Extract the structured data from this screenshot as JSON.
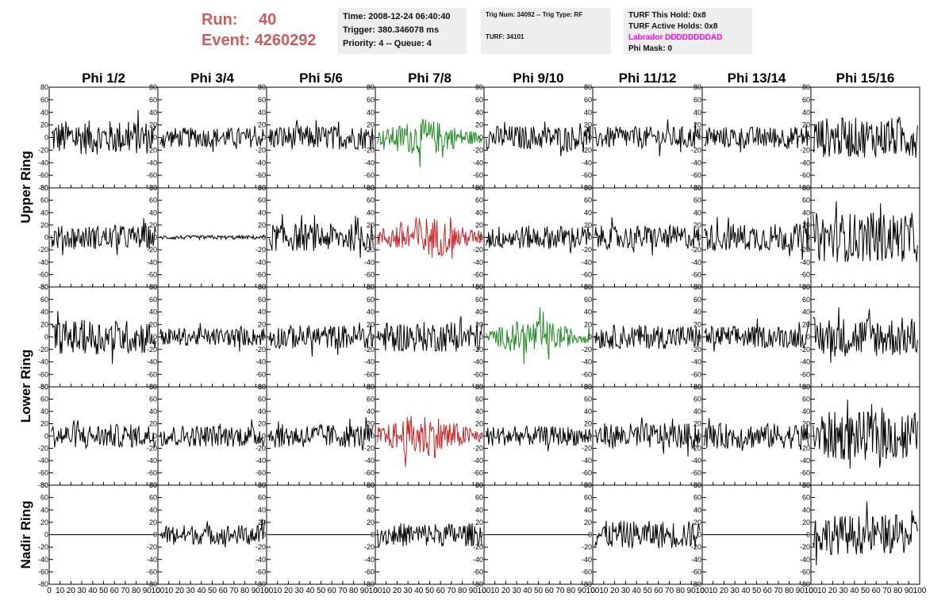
{
  "header": {
    "run_label": "Run:",
    "run_value": "40",
    "event_label": "Event:",
    "event_value": "4260292",
    "time_line": "Time: 2008-12-24 06:40:40",
    "trigger_line": "Trigger: 380.346078 ms",
    "priority_line": "Priority: 4 -- Queue: 4",
    "trig_num_line": "Trig Num: 34092 -- Trig Type: RF",
    "turf_line": "TURF: 34101",
    "turf_hold_line": "TURF This Hold: 0x8",
    "turf_active_line": "TURF Active Holds: 0x8",
    "labrador_line": "Labrador DDDDDDDDAD",
    "phi_mask_line": "Phi Mask: 0"
  },
  "chart_data": {
    "type": "line",
    "columns": [
      "Phi 1/2",
      "Phi 3/4",
      "Phi 5/6",
      "Phi 7/8",
      "Phi 9/10",
      "Phi 11/12",
      "Phi 13/14",
      "Phi 15/16"
    ],
    "row_groups": [
      {
        "label": "Upper Ring",
        "rows": [
          0,
          1
        ]
      },
      {
        "label": "Lower Ring",
        "rows": [
          2,
          3
        ]
      },
      {
        "label": "Nadir Ring",
        "rows": [
          4
        ]
      }
    ],
    "xlim": [
      0,
      100
    ],
    "x_ticks": [
      0,
      10,
      20,
      30,
      40,
      50,
      60,
      70,
      80,
      90,
      100
    ],
    "x_tick_labels": [
      "0",
      "10",
      "20",
      "30",
      "40",
      "50",
      "60",
      "70",
      "80",
      "90",
      "100"
    ],
    "ylim": [
      -80,
      80
    ],
    "y_ticks": [
      80,
      60,
      40,
      20,
      0,
      -20,
      -40,
      -60,
      -80
    ],
    "y_tick_labels": [
      "80",
      "60",
      "40",
      "20",
      "0",
      "-20",
      "-40",
      "-60",
      "-80"
    ],
    "colors": {
      "normal": "#000000",
      "triggered": "#228b22",
      "highlighted": "#cc2222"
    },
    "panels": [
      [
        {
          "amp": 17,
          "state": "normal"
        },
        {
          "amp": 10,
          "state": "normal"
        },
        {
          "amp": 12,
          "state": "normal"
        },
        {
          "amp": 14,
          "state": "triggered",
          "envelope": true
        },
        {
          "amp": 12,
          "state": "normal"
        },
        {
          "amp": 11,
          "state": "normal"
        },
        {
          "amp": 11,
          "state": "normal"
        },
        {
          "amp": 20,
          "state": "normal"
        }
      ],
      [
        {
          "amp": 12,
          "state": "normal"
        },
        {
          "amp": 2,
          "state": "normal"
        },
        {
          "amp": 14,
          "state": "normal"
        },
        {
          "amp": 17,
          "state": "highlighted",
          "envelope": true
        },
        {
          "amp": 12,
          "state": "normal"
        },
        {
          "amp": 12,
          "state": "normal"
        },
        {
          "amp": 14,
          "state": "normal"
        },
        {
          "amp": 25,
          "state": "normal"
        }
      ],
      [
        {
          "amp": 17,
          "state": "normal"
        },
        {
          "amp": 9,
          "state": "normal"
        },
        {
          "amp": 12,
          "state": "normal"
        },
        {
          "amp": 15,
          "state": "normal"
        },
        {
          "amp": 14,
          "state": "triggered",
          "envelope": true
        },
        {
          "amp": 12,
          "state": "normal"
        },
        {
          "amp": 11,
          "state": "normal"
        },
        {
          "amp": 20,
          "state": "normal"
        }
      ],
      [
        {
          "amp": 12,
          "state": "normal"
        },
        {
          "amp": 11,
          "state": "normal"
        },
        {
          "amp": 12,
          "state": "normal"
        },
        {
          "amp": 18,
          "state": "highlighted",
          "envelope": true
        },
        {
          "amp": 10,
          "state": "normal"
        },
        {
          "amp": 13,
          "state": "normal"
        },
        {
          "amp": 13,
          "state": "normal"
        },
        {
          "amp": 25,
          "state": "normal"
        }
      ],
      [
        {
          "amp": 0,
          "state": "normal"
        },
        {
          "amp": 10,
          "state": "normal"
        },
        {
          "amp": 0,
          "state": "normal"
        },
        {
          "amp": 12,
          "state": "normal"
        },
        {
          "amp": 0,
          "state": "normal"
        },
        {
          "amp": 14,
          "state": "normal"
        },
        {
          "amp": 0,
          "state": "normal"
        },
        {
          "amp": 20,
          "state": "normal"
        }
      ]
    ]
  }
}
